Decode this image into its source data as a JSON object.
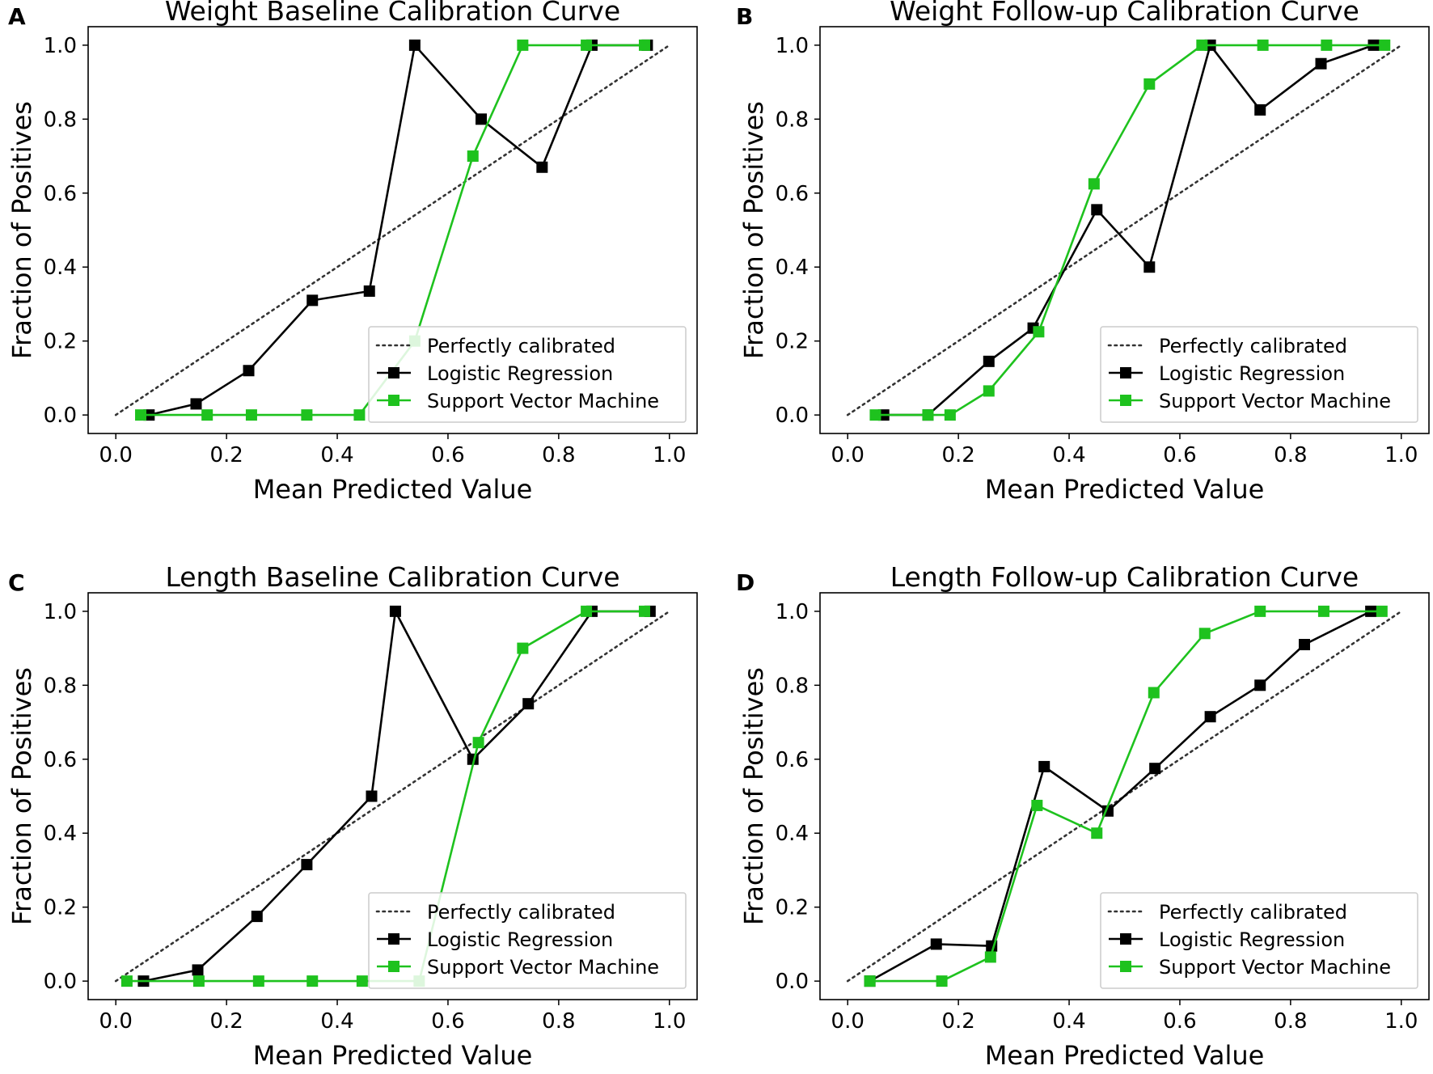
{
  "series_styles": {
    "perfect_color": "#333333",
    "lr_color": "#000000",
    "svm_color": "#1ec21e"
  },
  "chart_data": [
    {
      "panel_label": "A",
      "type": "line",
      "title": "Weight Baseline Calibration Curve",
      "xlabel": "Mean Predicted Value",
      "ylabel": "Fraction of Positives",
      "xlim": [
        -0.05,
        1.05
      ],
      "ylim": [
        -0.05,
        1.05
      ],
      "xticks": [
        "0.0",
        "0.2",
        "0.4",
        "0.6",
        "0.8",
        "1.0"
      ],
      "yticks": [
        "0.0",
        "0.2",
        "0.4",
        "0.6",
        "0.8",
        "1.0"
      ],
      "legend": [
        "Perfectly calibrated",
        "Logistic Regression",
        "Support Vector Machine"
      ],
      "legend_position": "lower-right",
      "series": [
        {
          "name": "Perfectly calibrated",
          "style": "dotted",
          "x": [
            0,
            1
          ],
          "y": [
            0,
            1
          ]
        },
        {
          "name": "Logistic Regression",
          "style": "lr",
          "x": [
            0.06,
            0.145,
            0.24,
            0.355,
            0.458,
            0.54,
            0.66,
            0.77,
            0.86,
            0.96
          ],
          "y": [
            0.0,
            0.03,
            0.12,
            0.31,
            0.335,
            1.0,
            0.8,
            0.67,
            1.0,
            1.0
          ]
        },
        {
          "name": "Support Vector Machine",
          "style": "svm",
          "x": [
            0.045,
            0.165,
            0.245,
            0.345,
            0.44,
            0.54,
            0.645,
            0.735,
            0.85,
            0.955
          ],
          "y": [
            0.0,
            0.0,
            0.0,
            0.0,
            0.0,
            0.2,
            0.7,
            1.0,
            1.0,
            1.0
          ]
        }
      ]
    },
    {
      "panel_label": "B",
      "type": "line",
      "title": "Weight Follow-up Calibration Curve",
      "xlabel": "Mean Predicted Value",
      "ylabel": "Fraction of Positives",
      "xlim": [
        -0.05,
        1.05
      ],
      "ylim": [
        -0.05,
        1.05
      ],
      "xticks": [
        "0.0",
        "0.2",
        "0.4",
        "0.6",
        "0.8",
        "1.0"
      ],
      "yticks": [
        "0.0",
        "0.2",
        "0.4",
        "0.6",
        "0.8",
        "1.0"
      ],
      "legend": [
        "Perfectly calibrated",
        "Logistic Regression",
        "Support Vector Machine"
      ],
      "legend_position": "lower-right",
      "series": [
        {
          "name": "Perfectly calibrated",
          "style": "dotted",
          "x": [
            0,
            1
          ],
          "y": [
            0,
            1
          ]
        },
        {
          "name": "Logistic Regression",
          "style": "lr",
          "x": [
            0.065,
            0.145,
            0.255,
            0.335,
            0.45,
            0.545,
            0.655,
            0.745,
            0.855,
            0.95
          ],
          "y": [
            0.0,
            0.0,
            0.145,
            0.235,
            0.555,
            0.4,
            1.0,
            0.825,
            0.95,
            1.0
          ]
        },
        {
          "name": "Support Vector Machine",
          "style": "svm",
          "x": [
            0.05,
            0.145,
            0.185,
            0.255,
            0.345,
            0.445,
            0.545,
            0.64,
            0.75,
            0.865,
            0.97
          ],
          "y": [
            0.0,
            0.0,
            0.0,
            0.065,
            0.225,
            0.625,
            0.895,
            1.0,
            1.0,
            1.0,
            1.0
          ]
        }
      ]
    },
    {
      "panel_label": "C",
      "type": "line",
      "title": "Length Baseline Calibration Curve",
      "xlabel": "Mean Predicted Value",
      "ylabel": "Fraction of Positives",
      "xlim": [
        -0.05,
        1.05
      ],
      "ylim": [
        -0.05,
        1.05
      ],
      "xticks": [
        "0.0",
        "0.2",
        "0.4",
        "0.6",
        "0.8",
        "1.0"
      ],
      "yticks": [
        "0.0",
        "0.2",
        "0.4",
        "0.6",
        "0.8",
        "1.0"
      ],
      "legend": [
        "Perfectly calibrated",
        "Logistic Regression",
        "Support Vector Machine"
      ],
      "legend_position": "lower-right",
      "series": [
        {
          "name": "Perfectly calibrated",
          "style": "dotted",
          "x": [
            0,
            1
          ],
          "y": [
            0,
            1
          ]
        },
        {
          "name": "Logistic Regression",
          "style": "lr",
          "x": [
            0.05,
            0.148,
            0.255,
            0.345,
            0.462,
            0.505,
            0.645,
            0.745,
            0.86,
            0.965
          ],
          "y": [
            0.0,
            0.03,
            0.175,
            0.315,
            0.5,
            1.0,
            0.6,
            0.75,
            1.0,
            1.0
          ]
        },
        {
          "name": "Support Vector Machine",
          "style": "svm",
          "x": [
            0.02,
            0.15,
            0.258,
            0.355,
            0.445,
            0.548,
            0.655,
            0.735,
            0.85,
            0.955
          ],
          "y": [
            0.0,
            0.0,
            0.0,
            0.0,
            0.0,
            0.0,
            0.645,
            0.9,
            1.0,
            1.0
          ]
        }
      ]
    },
    {
      "panel_label": "D",
      "type": "line",
      "title": "Length Follow-up Calibration Curve",
      "xlabel": "Mean Predicted Value",
      "ylabel": "Fraction of Positives",
      "xlim": [
        -0.05,
        1.05
      ],
      "ylim": [
        -0.05,
        1.05
      ],
      "xticks": [
        "0.0",
        "0.2",
        "0.4",
        "0.6",
        "0.8",
        "1.0"
      ],
      "yticks": [
        "0.0",
        "0.2",
        "0.4",
        "0.6",
        "0.8",
        "1.0"
      ],
      "legend": [
        "Perfectly calibrated",
        "Logistic Regression",
        "Support Vector Machine"
      ],
      "legend_position": "lower-right",
      "series": [
        {
          "name": "Perfectly calibrated",
          "style": "dotted",
          "x": [
            0,
            1
          ],
          "y": [
            0,
            1
          ]
        },
        {
          "name": "Logistic Regression",
          "style": "lr",
          "x": [
            0.04,
            0.16,
            0.26,
            0.355,
            0.47,
            0.555,
            0.655,
            0.745,
            0.825,
            0.945
          ],
          "y": [
            0.0,
            0.1,
            0.095,
            0.58,
            0.46,
            0.575,
            0.715,
            0.8,
            0.91,
            1.0
          ]
        },
        {
          "name": "Support Vector Machine",
          "style": "svm",
          "x": [
            0.04,
            0.17,
            0.258,
            0.342,
            0.45,
            0.553,
            0.645,
            0.745,
            0.86,
            0.965
          ],
          "y": [
            0.0,
            0.0,
            0.065,
            0.475,
            0.4,
            0.78,
            0.94,
            1.0,
            1.0,
            1.0
          ]
        }
      ]
    }
  ]
}
